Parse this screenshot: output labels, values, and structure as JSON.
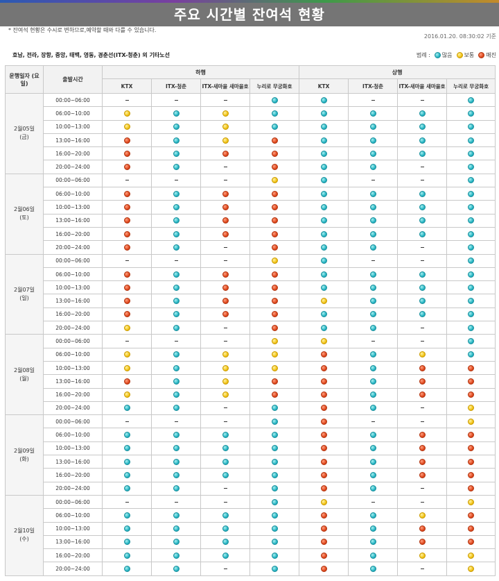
{
  "page": {
    "title": "주요 시간별 잔여석 현황",
    "timestamp": "2016.01.20. 08:30:02 기준",
    "note1": "* 잔여석 현황은 수시로 변하므로,예약할 때와 다를 수 있습니다.",
    "note2": "호남, 전라, 장항, 중앙, 태백, 영동, 경춘선(ITX-청춘) 외 기타노선",
    "legend_label": "범례 :",
    "legend": [
      {
        "label": "많음",
        "status": "g",
        "color": "#26b5c4"
      },
      {
        "label": "보통",
        "status": "y",
        "color": "#f2c318"
      },
      {
        "label": "매진",
        "status": "r",
        "color": "#e0481e"
      }
    ]
  },
  "table": {
    "date_header": "운행일자 (요일)",
    "time_header": "출발시간",
    "groups": [
      "하행",
      "상행"
    ],
    "train_types": [
      "KTX",
      "ITX-청춘",
      "ITX-새마을 새마을호",
      "누리로 무궁화호"
    ],
    "time_slots": [
      "00:00~06:00",
      "06:00~10:00",
      "10:00~13:00",
      "13:00~16:00",
      "16:00~20:00",
      "20:00~24:00"
    ],
    "days": [
      {
        "date": "2월05일",
        "weekday": "(금)",
        "rows": [
          [
            "-",
            "-",
            "-",
            "g",
            "g",
            "-",
            "-",
            "g"
          ],
          [
            "y",
            "g",
            "y",
            "g",
            "g",
            "g",
            "g",
            "g"
          ],
          [
            "y",
            "g",
            "y",
            "g",
            "g",
            "g",
            "g",
            "g"
          ],
          [
            "r",
            "g",
            "y",
            "r",
            "g",
            "g",
            "g",
            "g"
          ],
          [
            "r",
            "g",
            "r",
            "r",
            "g",
            "g",
            "g",
            "g"
          ],
          [
            "r",
            "g",
            "-",
            "r",
            "g",
            "g",
            "-",
            "g"
          ]
        ]
      },
      {
        "date": "2월06일",
        "weekday": "(토)",
        "rows": [
          [
            "-",
            "-",
            "-",
            "y",
            "g",
            "-",
            "-",
            "g"
          ],
          [
            "r",
            "g",
            "r",
            "r",
            "g",
            "g",
            "g",
            "g"
          ],
          [
            "r",
            "g",
            "r",
            "r",
            "g",
            "g",
            "g",
            "g"
          ],
          [
            "r",
            "g",
            "r",
            "r",
            "g",
            "g",
            "g",
            "g"
          ],
          [
            "r",
            "g",
            "r",
            "r",
            "g",
            "g",
            "g",
            "g"
          ],
          [
            "r",
            "g",
            "-",
            "r",
            "g",
            "g",
            "-",
            "g"
          ]
        ]
      },
      {
        "date": "2월07일",
        "weekday": "(일)",
        "rows": [
          [
            "-",
            "-",
            "-",
            "y",
            "g",
            "-",
            "-",
            "g"
          ],
          [
            "r",
            "g",
            "r",
            "r",
            "g",
            "g",
            "g",
            "g"
          ],
          [
            "r",
            "g",
            "r",
            "r",
            "g",
            "g",
            "g",
            "g"
          ],
          [
            "r",
            "g",
            "r",
            "r",
            "y",
            "g",
            "g",
            "g"
          ],
          [
            "r",
            "g",
            "r",
            "r",
            "g",
            "g",
            "g",
            "g"
          ],
          [
            "y",
            "g",
            "-",
            "r",
            "g",
            "g",
            "-",
            "g"
          ]
        ]
      },
      {
        "date": "2월08일",
        "weekday": "(월)",
        "rows": [
          [
            "-",
            "-",
            "-",
            "y",
            "y",
            "-",
            "-",
            "g"
          ],
          [
            "y",
            "g",
            "y",
            "y",
            "r",
            "g",
            "y",
            "g"
          ],
          [
            "y",
            "g",
            "y",
            "y",
            "r",
            "g",
            "r",
            "r"
          ],
          [
            "r",
            "g",
            "y",
            "r",
            "r",
            "g",
            "r",
            "r"
          ],
          [
            "y",
            "g",
            "y",
            "r",
            "r",
            "g",
            "r",
            "r"
          ],
          [
            "g",
            "g",
            "-",
            "g",
            "r",
            "g",
            "-",
            "y"
          ]
        ]
      },
      {
        "date": "2월09일",
        "weekday": "(화)",
        "rows": [
          [
            "-",
            "-",
            "-",
            "g",
            "r",
            "-",
            "-",
            "y"
          ],
          [
            "g",
            "g",
            "g",
            "g",
            "r",
            "g",
            "r",
            "r"
          ],
          [
            "g",
            "g",
            "g",
            "g",
            "r",
            "g",
            "r",
            "r"
          ],
          [
            "g",
            "g",
            "g",
            "g",
            "r",
            "g",
            "r",
            "r"
          ],
          [
            "g",
            "g",
            "g",
            "g",
            "r",
            "g",
            "r",
            "r"
          ],
          [
            "g",
            "g",
            "-",
            "g",
            "r",
            "g",
            "-",
            "r"
          ]
        ]
      },
      {
        "date": "2월10일",
        "weekday": "(수)",
        "rows": [
          [
            "-",
            "-",
            "-",
            "g",
            "y",
            "-",
            "-",
            "y"
          ],
          [
            "g",
            "g",
            "g",
            "g",
            "r",
            "g",
            "y",
            "r"
          ],
          [
            "g",
            "g",
            "g",
            "g",
            "r",
            "g",
            "r",
            "r"
          ],
          [
            "g",
            "g",
            "g",
            "g",
            "r",
            "g",
            "r",
            "r"
          ],
          [
            "g",
            "g",
            "g",
            "g",
            "r",
            "g",
            "y",
            "y"
          ],
          [
            "g",
            "g",
            "-",
            "g",
            "r",
            "g",
            "-",
            "y"
          ]
        ]
      }
    ]
  }
}
